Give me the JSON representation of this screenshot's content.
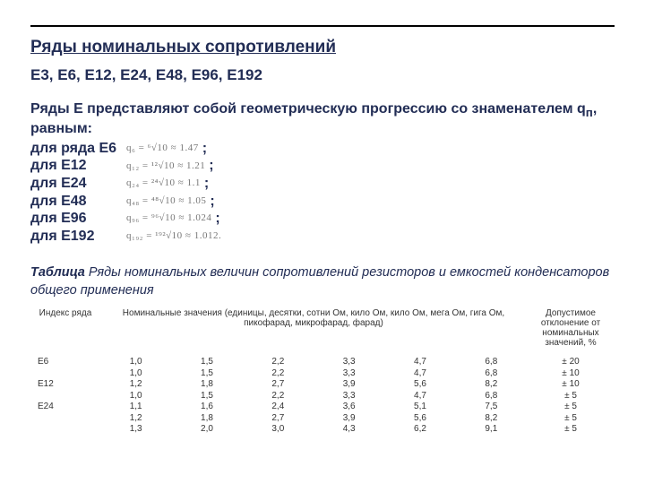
{
  "title": "Ряды номинальных сопротивлений",
  "series_list": "Е3, Е6, Е12, Е24, Е48, Е96, Е192",
  "intro1": "Ряды Е представляют собой геометрическую прогрессию со знаменателем q",
  "intro_sub": "п",
  "intro2": ", равным:",
  "ratios": [
    {
      "lbl": "для ряда Е6",
      "formula": "q₆ = ⁶√10 ≈ 1.47",
      "semi": ";"
    },
    {
      "lbl": "для Е12",
      "formula": "q₁₂ = ¹²√10 ≈ 1.21",
      "semi": ";"
    },
    {
      "lbl": "для Е24",
      "formula": "q₂₄ = ²⁴√10 ≈ 1.1",
      "semi": ";"
    },
    {
      "lbl": "для Е48",
      "formula": "q₄₈ = ⁴⁸√10 ≈ 1.05",
      "semi": ";"
    },
    {
      "lbl": "для Е96",
      "formula": "q₉₆ = ⁹⁶√10 ≈ 1.024",
      "semi": ";"
    },
    {
      "lbl": "для Е192",
      "formula": "q₁₉₂ = ¹⁹²√10 ≈ 1.012.",
      "semi": ""
    }
  ],
  "table_title_lead": "Таблица",
  "table_title_rest": " Ряды номинальных величин сопротивлений резисторов и емкостей конденсаторов общего применения",
  "th_index": "Индекс ряда",
  "th_vals": "Номинальные значения (единицы, десятки, сотни Ом, кило Ом, кило Ом, мега Ом, гига Ом, пикофарад, микрофарад, фарад)",
  "th_tol": "Допустимое отклонение от номинальных значений, %",
  "rows": [
    {
      "idx": "Е6",
      "c1": "1,0",
      "c2": "1,5",
      "c3": "2,2",
      "c4": "3,3",
      "c5": "4,7",
      "c6": "6,8",
      "tol": "± 20"
    },
    {
      "idx": "",
      "c1": "1,0",
      "c2": "1,5",
      "c3": "2,2",
      "c4": "3,3",
      "c5": "4,7",
      "c6": "6,8",
      "tol": "± 10"
    },
    {
      "idx": "Е12",
      "c1": "1,2",
      "c2": "1,8",
      "c3": "2,7",
      "c4": "3,9",
      "c5": "5,6",
      "c6": "8,2",
      "tol": "± 10"
    },
    {
      "idx": "",
      "c1": "1,0",
      "c2": "1,5",
      "c3": "2,2",
      "c4": "3,3",
      "c5": "4,7",
      "c6": "6,8",
      "tol": "± 5"
    },
    {
      "idx": "Е24",
      "c1": "1,1",
      "c2": "1,6",
      "c3": "2,4",
      "c4": "3,6",
      "c5": "5,1",
      "c6": "7,5",
      "tol": "± 5"
    },
    {
      "idx": "",
      "c1": "1,2",
      "c2": "1,8",
      "c3": "2,7",
      "c4": "3,9",
      "c5": "5,6",
      "c6": "8,2",
      "tol": "± 5"
    },
    {
      "idx": "",
      "c1": "1,3",
      "c2": "2,0",
      "c3": "3,0",
      "c4": "4,3",
      "c5": "6,2",
      "c6": "9,1",
      "tol": "± 5"
    }
  ]
}
